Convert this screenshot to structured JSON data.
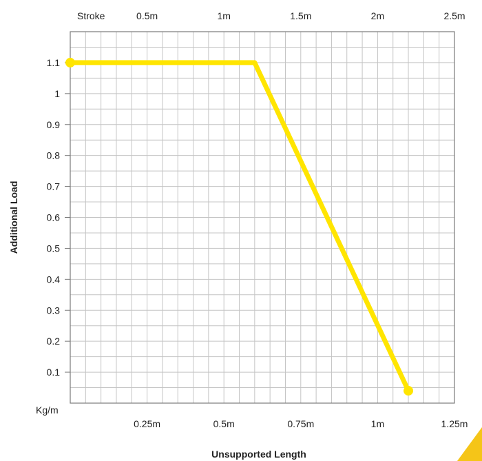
{
  "chart_data": {
    "type": "line",
    "ylabel": "Additional Load",
    "y_unit_label": "Kg/m",
    "xlabel": "Unsupported Length",
    "top_axis_label": "Stroke",
    "x_ticks": [
      "0.25m",
      "0.5m",
      "0.75m",
      "1m",
      "1.25m"
    ],
    "x_tick_values": [
      0.25,
      0.5,
      0.75,
      1.0,
      1.25
    ],
    "top_ticks": [
      "0.5m",
      "1m",
      "1.5m",
      "2m",
      "2.5m"
    ],
    "top_tick_values": [
      0.25,
      0.5,
      0.75,
      1.0,
      1.25
    ],
    "y_ticks": [
      "0.1",
      "0.2",
      "0.3",
      "0.4",
      "0.5",
      "0.6",
      "0.7",
      "0.8",
      "0.9",
      "1",
      "1.1"
    ],
    "y_tick_values": [
      0.1,
      0.2,
      0.3,
      0.4,
      0.5,
      0.6,
      0.7,
      0.8,
      0.9,
      1.0,
      1.1
    ],
    "xlim": [
      0,
      1.25
    ],
    "ylim": [
      0,
      1.2
    ],
    "grid": true,
    "line_color": "#FFE500",
    "accent_color": "#F5C518",
    "series": [
      {
        "x": [
          0,
          0.6,
          1.1
        ],
        "y": [
          1.1,
          1.1,
          0.04
        ]
      }
    ]
  }
}
